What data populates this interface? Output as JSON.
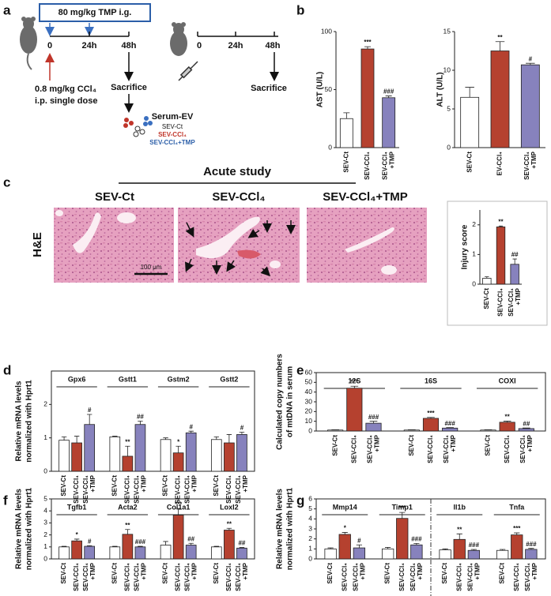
{
  "panel_labels": [
    "a",
    "b",
    "c",
    "d",
    "e",
    "f",
    "g"
  ],
  "diagram": {
    "dose_tmp": "80 mg/kg TMP i.g.",
    "timeline_1": [
      "0",
      "24h",
      "48h"
    ],
    "dose_ccl4": "0.8 mg/kg CCl₄",
    "route": "i.p. single dose",
    "sacrifice_1": "Sacrifice",
    "timeline_2": [
      "0",
      "24h",
      "48h"
    ],
    "sacrifice_2": "Sacrifice",
    "serum_ev": "Serum-EV",
    "groups": [
      "SEV-Ct",
      "SEV-CCl₄",
      "SEV-CCl₄+TMP"
    ]
  },
  "histology": {
    "study": "Acute study",
    "columns": [
      "SEV-Ct",
      "SEV-CCl₄",
      "SEV-CCl₄+TMP"
    ],
    "stain": "H&E",
    "scale_bar": "100 μm"
  },
  "chart_data": [
    {
      "type": "bar",
      "ylabel": "AST (U/L)",
      "categories": [
        "SEV-Ct",
        "SEV-CCl₄",
        "SEV-CCl₄ +TMP"
      ],
      "values": [
        25,
        85,
        43
      ],
      "errors": [
        5,
        2,
        1.5
      ],
      "colors": [
        "#ffffff",
        "#b5412f",
        "#8782bd"
      ],
      "annotations": [
        null,
        "***",
        "###"
      ],
      "ylim": [
        0,
        100
      ],
      "yticks": [
        0,
        50,
        100
      ]
    },
    {
      "type": "bar",
      "ylabel": "ALT (U/L)",
      "categories": [
        "SEV-Ct",
        "EV-CCl₄",
        "SEV-CCl₄ +TMP"
      ],
      "values": [
        6.5,
        12.5,
        10.7
      ],
      "errors": [
        1.3,
        1.2,
        0.2
      ],
      "colors": [
        "#ffffff",
        "#b5412f",
        "#8782bd"
      ],
      "annotations": [
        null,
        "**",
        "#"
      ],
      "ylim": [
        0,
        15
      ],
      "yticks": [
        0,
        5,
        10,
        15
      ]
    },
    {
      "type": "bar",
      "ylabel": "Injury score",
      "categories": [
        "SEV-Ct",
        "SEV-CCl₄",
        "SEV-CCl₄ +TMP"
      ],
      "values": [
        0.2,
        1.93,
        0.67
      ],
      "errors": [
        0.05,
        0.03,
        0.18
      ],
      "colors": [
        "#ffffff",
        "#b5412f",
        "#8782bd"
      ],
      "annotations": [
        null,
        "**",
        "##"
      ],
      "ylim": [
        0,
        2.5
      ],
      "yticks": [
        0,
        1,
        2
      ]
    },
    {
      "type": "grouped_bar",
      "ylabel": [
        "Relative mRNA levels",
        "normalized with Hprt1"
      ],
      "categories": [
        "Gpx6",
        "Gstt1",
        "Gstm2",
        "Gstt2"
      ],
      "series": [
        {
          "name": "SEV-Ct",
          "color": "#ffffff",
          "values": [
            0.93,
            1.03,
            0.95,
            0.95
          ],
          "errors": [
            0.1,
            0.02,
            0.05,
            0.08
          ],
          "annotations": [
            null,
            null,
            null,
            null
          ]
        },
        {
          "name": "SEV-CCl₄",
          "color": "#b5412f",
          "values": [
            0.85,
            0.45,
            0.55,
            0.85
          ],
          "errors": [
            0.2,
            0.3,
            0.2,
            0.25
          ],
          "annotations": [
            null,
            "**",
            "*",
            null
          ]
        },
        {
          "name": "SEV-CCl₄ +TMP",
          "color": "#8782bd",
          "values": [
            1.4,
            1.4,
            1.15,
            1.1
          ],
          "errors": [
            0.3,
            0.1,
            0.05,
            0.07
          ],
          "annotations": [
            "#",
            "##",
            "#",
            "#"
          ]
        }
      ],
      "ylim": [
        0,
        3
      ],
      "yticks": [
        0,
        1,
        2
      ]
    },
    {
      "type": "grouped_bar",
      "ylabel": [
        "Calculated copy numbers",
        "of mtDNA in serum"
      ],
      "categories": [
        "12S",
        "16S",
        "COXI"
      ],
      "series": [
        {
          "name": "SEV-Ct",
          "color": "#ffffff",
          "values": [
            1,
            1,
            1
          ],
          "errors": [
            0.3,
            0.3,
            0.3
          ],
          "annotations": [
            null,
            null,
            null
          ]
        },
        {
          "name": "SEV-CCl₄",
          "color": "#b5412f",
          "values": [
            44,
            13,
            9
          ],
          "errors": [
            2,
            1,
            1.2
          ],
          "annotations": [
            "***",
            "***",
            "**"
          ]
        },
        {
          "name": "SEV-CCl₄ +TMP",
          "color": "#8782bd",
          "values": [
            8,
            3,
            2.5
          ],
          "errors": [
            2,
            0.5,
            0.6
          ],
          "annotations": [
            "###",
            "###",
            "##"
          ]
        }
      ],
      "ylim": [
        0,
        60
      ],
      "yticks": [
        0,
        10,
        20,
        30,
        40,
        50,
        60
      ]
    },
    {
      "type": "grouped_bar",
      "ylabel": [
        "Relative mRNA levels",
        "normalized with Hprt1"
      ],
      "categories": [
        "Tgfb1",
        "Acta2",
        "Col1a1",
        "Loxl2"
      ],
      "series": [
        {
          "name": "SEV-Ct",
          "color": "#ffffff",
          "values": [
            1,
            1,
            1.15,
            1
          ],
          "errors": [
            0.05,
            0.05,
            0.3,
            0.05
          ],
          "annotations": [
            null,
            null,
            null,
            null
          ]
        },
        {
          "name": "SEV-CCl₄",
          "color": "#b5412f",
          "values": [
            1.5,
            2.05,
            3.65,
            2.4
          ],
          "errors": [
            0.15,
            0.4,
            0.55,
            0.15
          ],
          "annotations": [
            "*",
            "**",
            "***",
            "**"
          ]
        },
        {
          "name": "SEV-CCl₄ +TMP",
          "color": "#8782bd",
          "values": [
            1.05,
            1.0,
            1.15,
            0.9
          ],
          "errors": [
            0.05,
            0.05,
            0.15,
            0.05
          ],
          "annotations": [
            "#",
            "###",
            "##",
            "##"
          ]
        }
      ],
      "ylim": [
        0,
        5
      ],
      "yticks": [
        0,
        1,
        2,
        3,
        4,
        5
      ]
    },
    {
      "type": "grouped_bar",
      "ylabel": [
        "Relative mRNA levels",
        "normalized with Hprt1"
      ],
      "categories": [
        "Mmp14",
        "Timp1",
        "Il1b",
        "Tnfa"
      ],
      "series": [
        {
          "name": "SEV-Ct",
          "color": "#ffffff",
          "values": [
            1.0,
            1.0,
            0.9,
            0.85
          ],
          "errors": [
            0.1,
            0.15,
            0.1,
            0.1
          ],
          "annotations": [
            null,
            null,
            null,
            null
          ]
        },
        {
          "name": "SEV-CCl₄",
          "color": "#b5412f",
          "values": [
            2.45,
            4.05,
            1.95,
            2.4
          ],
          "errors": [
            0.2,
            0.6,
            0.55,
            0.2
          ],
          "annotations": [
            "*",
            "***",
            "**",
            "***"
          ]
        },
        {
          "name": "SEV-CCl₄ +TMP",
          "color": "#8782bd",
          "values": [
            1.1,
            1.4,
            0.85,
            0.95
          ],
          "errors": [
            0.3,
            0.15,
            0.1,
            0.1
          ],
          "annotations": [
            "#",
            "###",
            "###",
            "###"
          ]
        }
      ],
      "ylim": [
        0,
        6
      ],
      "yticks": [
        0,
        1,
        2,
        3,
        4,
        5,
        6
      ],
      "divider": true
    }
  ]
}
